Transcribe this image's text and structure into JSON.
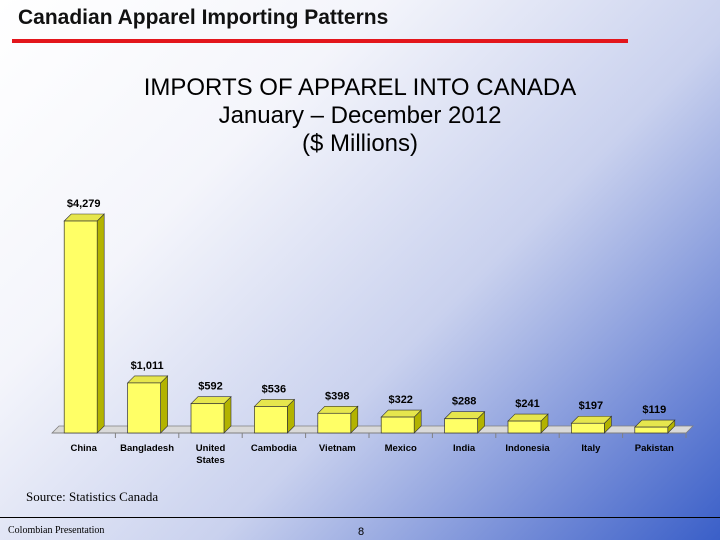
{
  "slide": {
    "title": "Canadian Apparel Importing Patterns",
    "source": "Source:  Statistics Canada",
    "footer_left": "Colombian Presentation",
    "page_number": "8",
    "accent_color": "#e3161c"
  },
  "chart_data": {
    "type": "bar",
    "title_lines": [
      "IMPORTS OF APPAREL INTO CANADA",
      "January – December 2012",
      "($ Millions)"
    ],
    "categories": [
      [
        "China"
      ],
      [
        "Bangladesh"
      ],
      [
        "United",
        "States"
      ],
      [
        "Cambodia"
      ],
      [
        "Vietnam"
      ],
      [
        "Mexico"
      ],
      [
        "India"
      ],
      [
        "Indonesia"
      ],
      [
        "Italy"
      ],
      [
        "Pakistan"
      ]
    ],
    "values": [
      4279,
      1011,
      592,
      536,
      398,
      322,
      288,
      241,
      197,
      119
    ],
    "labels": [
      "$4,279",
      "$1,011",
      "$592",
      "$536",
      "$398",
      "$322",
      "$288",
      "$241",
      "$197",
      "$119"
    ],
    "units": "$ Millions",
    "bar_color": "#ffff66",
    "grid": false,
    "legend": "none"
  }
}
